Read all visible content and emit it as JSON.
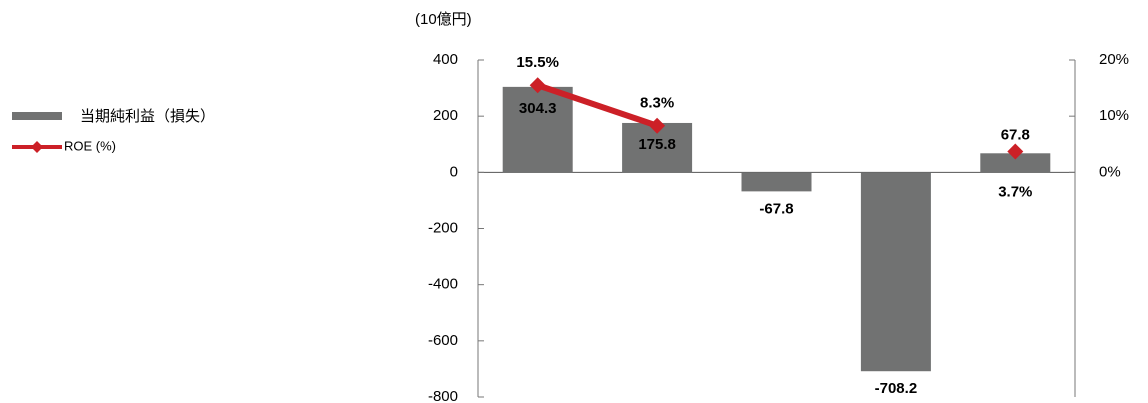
{
  "chart_data": {
    "type": "bar",
    "y_label": "(10億円)",
    "categories": [
      null,
      null,
      null,
      null,
      null
    ],
    "series": [
      {
        "name": "当期純利益（損失）",
        "type": "bar",
        "color": "#717272",
        "values": [
          304.3,
          175.8,
          -67.8,
          -708.2,
          67.8
        ]
      },
      {
        "name": "ROE (%)",
        "type": "line",
        "axis": "y2",
        "color": "#cc2027",
        "values": [
          15.5,
          8.3,
          null,
          null,
          3.7
        ],
        "value_labels": [
          "15.5%",
          "8.3%",
          null,
          null,
          "3.7%"
        ]
      }
    ],
    "ylim": [
      -800,
      400
    ],
    "yticks": [
      -800,
      -600,
      -400,
      -200,
      0,
      200,
      400
    ],
    "y2lim": [
      -40,
      20
    ],
    "y2ticks": [
      {
        "value": 0,
        "label": "0%"
      },
      {
        "value": 10,
        "label": "10%"
      },
      {
        "value": 20,
        "label": "20%"
      }
    ],
    "grid": false,
    "legend": "left"
  }
}
